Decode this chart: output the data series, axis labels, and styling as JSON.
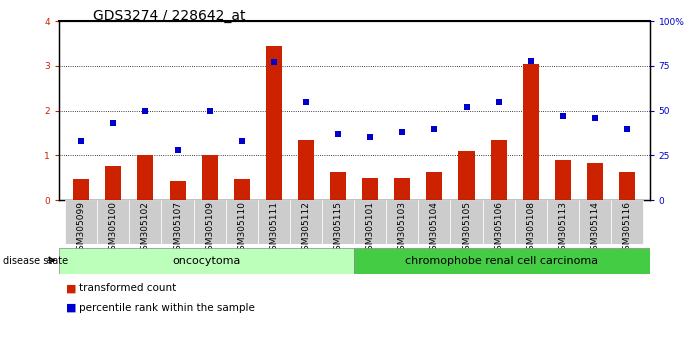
{
  "title": "GDS3274 / 228642_at",
  "samples": [
    "GSM305099",
    "GSM305100",
    "GSM305102",
    "GSM305107",
    "GSM305109",
    "GSM305110",
    "GSM305111",
    "GSM305112",
    "GSM305115",
    "GSM305101",
    "GSM305103",
    "GSM305104",
    "GSM305105",
    "GSM305106",
    "GSM305108",
    "GSM305113",
    "GSM305114",
    "GSM305116"
  ],
  "transformed_count": [
    0.48,
    0.77,
    1.0,
    0.42,
    1.0,
    0.47,
    3.45,
    1.35,
    0.62,
    0.5,
    0.5,
    0.62,
    1.1,
    1.35,
    3.05,
    0.9,
    0.83,
    0.62
  ],
  "percentile_rank": [
    33,
    43,
    50,
    28,
    50,
    33,
    77,
    55,
    37,
    35,
    38,
    40,
    52,
    55,
    78,
    47,
    46,
    40
  ],
  "onco_count": 9,
  "carci_count": 9,
  "ylim_left": [
    0,
    4
  ],
  "ylim_right": [
    0,
    100
  ],
  "yticks_left": [
    0,
    1,
    2,
    3,
    4
  ],
  "yticks_right": [
    0,
    25,
    50,
    75,
    100
  ],
  "bar_color": "#cc2200",
  "dot_color": "#0000cc",
  "oncocytoma_color": "#bbffbb",
  "carcinoma_color": "#44cc44",
  "title_fontsize": 10,
  "tick_fontsize": 6.5,
  "legend_fontsize": 7.5,
  "bar_width": 0.5,
  "label_bg_color": "#cccccc"
}
